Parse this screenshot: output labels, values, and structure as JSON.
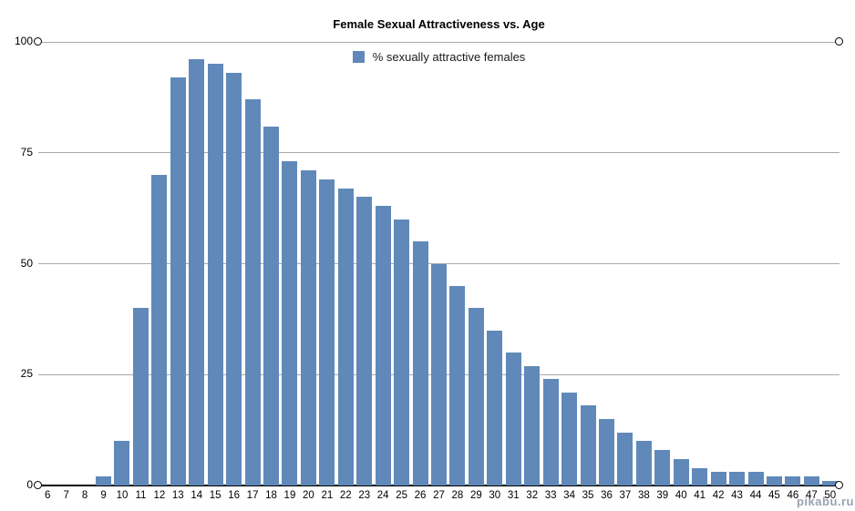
{
  "watermark": "pikabu.ru",
  "chart_data": {
    "type": "bar",
    "title": "Female Sexual Attractiveness vs. Age",
    "legend_label": "% sexually attractive females",
    "legend_position": "top-center",
    "xlabel": "",
    "ylabel": "",
    "ylim": [
      0,
      100
    ],
    "yticks": [
      0,
      25,
      50,
      75,
      100
    ],
    "grid": true,
    "categories": [
      "6",
      "7",
      "8",
      "9",
      "10",
      "11",
      "12",
      "13",
      "14",
      "15",
      "16",
      "17",
      "18",
      "19",
      "20",
      "21",
      "22",
      "23",
      "24",
      "25",
      "26",
      "27",
      "28",
      "29",
      "30",
      "31",
      "32",
      "33",
      "34",
      "35",
      "36",
      "37",
      "38",
      "39",
      "40",
      "41",
      "42",
      "43",
      "44",
      "45",
      "46",
      "47",
      "50"
    ],
    "values": [
      0,
      0,
      0,
      2,
      10,
      40,
      70,
      92,
      96,
      95,
      93,
      87,
      81,
      73,
      71,
      69,
      67,
      65,
      63,
      60,
      55,
      50,
      45,
      40,
      35,
      30,
      27,
      24,
      21,
      18,
      15,
      12,
      10,
      8,
      6,
      4,
      3,
      3,
      3,
      2,
      2,
      2,
      1
    ],
    "colors": {
      "bar": "#6089ba",
      "gridline": "#a9a9a9",
      "axis": "#000000",
      "background": "#ffffff"
    }
  }
}
